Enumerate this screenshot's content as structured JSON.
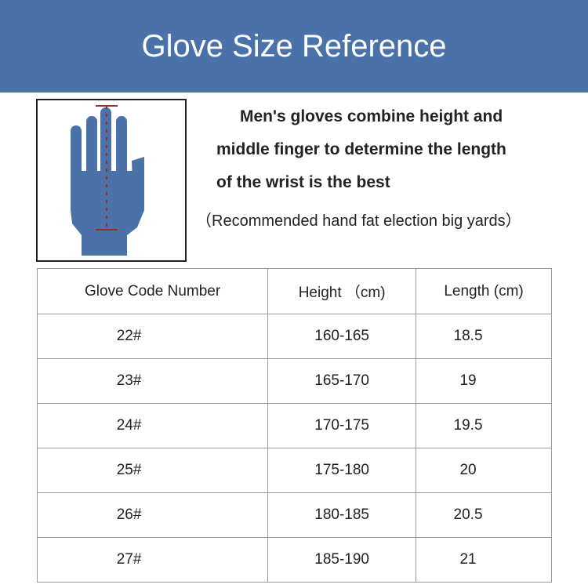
{
  "header": {
    "title": "Glove Size Reference",
    "bg_color": "#4a72a8"
  },
  "illustration": {
    "icon": "hand-measurement-icon",
    "hand_color": "#4a72a8",
    "line_color": "#a02a2a"
  },
  "description": {
    "lines": [
      "Men's gloves combine height and",
      "middle finger to determine the length",
      "of the wrist is the best"
    ],
    "note": "（Recommended hand fat election big yards）"
  },
  "table": {
    "headers": [
      "Glove Code Number",
      "Height （cm)",
      "Length (cm)"
    ],
    "rows": [
      [
        "22#",
        "160-165",
        "18.5"
      ],
      [
        "23#",
        "165-170",
        "19"
      ],
      [
        "24#",
        "170-175",
        "19.5"
      ],
      [
        "25#",
        "175-180",
        "20"
      ],
      [
        "26#",
        "180-185",
        "20.5"
      ],
      [
        "27#",
        "185-190",
        "21"
      ]
    ]
  }
}
